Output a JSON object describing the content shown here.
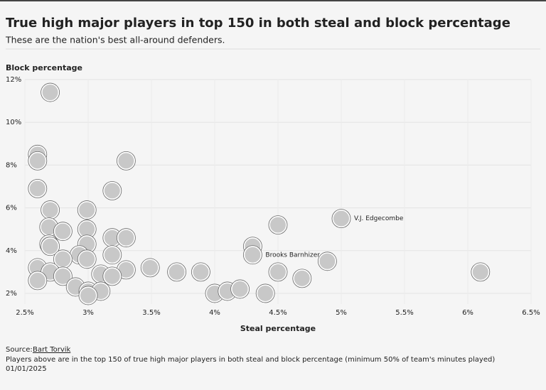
{
  "chart_data": {
    "type": "scatter",
    "title": "True high major players in top 150 in both steal and block percentage",
    "subtitle": "These are the nation's best all-around defenders.",
    "y_label": "Block percentage",
    "x_label": "Steal percentage",
    "color": "#c8c8c8",
    "x": [
      2.7,
      2.6,
      2.6,
      3.3,
      2.6,
      3.19,
      2.99,
      2.7,
      4.5,
      5.0,
      2.69,
      2.8,
      2.99,
      3.19,
      3.3,
      2.69,
      2.99,
      4.3,
      4.3,
      2.7,
      3.19,
      4.89,
      2.93,
      2.8,
      2.99,
      2.6,
      3.49,
      3.7,
      3.89,
      3.3,
      4.5,
      4.69,
      6.1,
      2.7,
      2.8,
      3.1,
      3.19,
      2.6,
      2.9,
      3.0,
      3.1,
      4.0,
      4.1,
      4.2,
      4.4,
      3.0
    ],
    "values": [
      11.4,
      8.5,
      8.2,
      8.2,
      6.9,
      6.8,
      5.9,
      5.9,
      5.2,
      5.5,
      5.1,
      4.9,
      5.0,
      4.6,
      4.6,
      4.3,
      4.3,
      4.2,
      3.8,
      4.2,
      3.8,
      3.5,
      3.8,
      3.6,
      3.6,
      3.2,
      3.2,
      3.0,
      3.0,
      3.1,
      3.0,
      2.7,
      3.0,
      3.0,
      2.8,
      2.9,
      2.8,
      2.6,
      2.3,
      2.1,
      2.1,
      2.0,
      2.1,
      2.2,
      2.0,
      1.9
    ],
    "point_labels": [
      null,
      null,
      null,
      null,
      null,
      null,
      null,
      null,
      null,
      "V.J. Edgecombe",
      null,
      null,
      null,
      null,
      null,
      null,
      null,
      null,
      "Brooks Barnhizer",
      null,
      null,
      null,
      null,
      null,
      null,
      null,
      null,
      null,
      null,
      null,
      null,
      null,
      null,
      null,
      null,
      null,
      null,
      null,
      null,
      null,
      null,
      null,
      null,
      null,
      null,
      null
    ],
    "xlim": [
      2.5,
      6.5
    ],
    "ylim": [
      1.5,
      12
    ],
    "xticks": [
      {
        "value": 2.5,
        "label": "2.5%"
      },
      {
        "value": 3,
        "label": "3%"
      },
      {
        "value": 3.5,
        "label": "3.5%"
      },
      {
        "value": 4,
        "label": "4%"
      },
      {
        "value": 4.5,
        "label": "4.5%"
      },
      {
        "value": 5,
        "label": "5%"
      },
      {
        "value": 5.5,
        "label": "5.5%"
      },
      {
        "value": 6,
        "label": "6%"
      },
      {
        "value": 6.5,
        "label": "6.5%"
      }
    ],
    "yticks": [
      {
        "value": 2,
        "label": "2%"
      },
      {
        "value": 4,
        "label": "4%"
      },
      {
        "value": 6,
        "label": "6%"
      },
      {
        "value": 8,
        "label": "8%"
      },
      {
        "value": 10,
        "label": "10%"
      },
      {
        "value": 12,
        "label": "12%"
      }
    ],
    "grid": true
  },
  "footer": {
    "source_label": "Source:",
    "source": "Bart Torvik",
    "note": "Players above are in the top 150 of true high major players in both steal and block percentage (minimum 50% of team's minutes played)",
    "date": "01/01/2025"
  }
}
